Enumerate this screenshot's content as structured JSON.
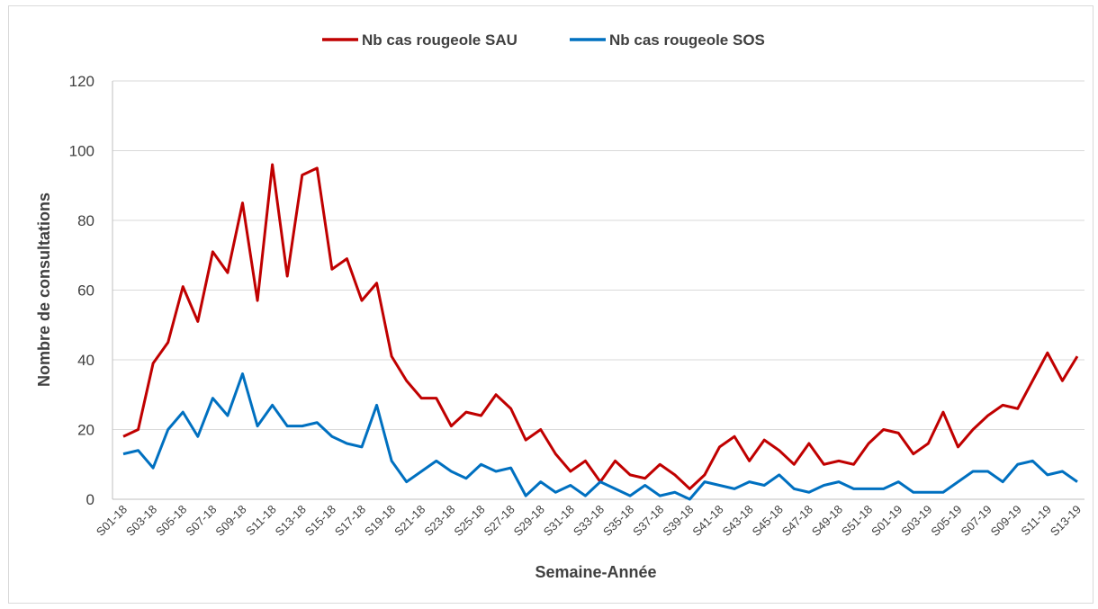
{
  "chart_data": {
    "type": "line",
    "x_label": "Semaine-Année",
    "y_label": "Nombre de consultations",
    "categories": [
      "S01-18",
      null,
      "S03-18",
      null,
      "S05-18",
      null,
      "S07-18",
      null,
      "S09-18",
      null,
      "S11-18",
      null,
      "S13-18",
      null,
      "S15-18",
      null,
      "S17-18",
      null,
      "S19-18",
      null,
      "S21-18",
      null,
      "S23-18",
      null,
      "S25-18",
      null,
      "S27-18",
      null,
      "S29-18",
      null,
      "S31-18",
      null,
      "S33-18",
      null,
      "S35-18",
      null,
      "S37-18",
      null,
      "S39-18",
      null,
      "S41-18",
      null,
      "S43-18",
      null,
      "S45-18",
      null,
      "S47-18",
      null,
      "S49-18",
      null,
      "S51-18",
      null,
      "S01-19",
      null,
      "S03-19",
      null,
      "S05-19",
      null,
      "S07-19",
      null,
      "S09-19",
      null,
      "S11-19",
      null,
      "S13-19"
    ],
    "series": [
      {
        "name": "Nb cas rougeole SAU",
        "color": "#c00000",
        "values": [
          18,
          20,
          39,
          45,
          61,
          51,
          71,
          65,
          85,
          57,
          96,
          64,
          93,
          95,
          66,
          69,
          57,
          62,
          41,
          34,
          29,
          29,
          21,
          25,
          24,
          30,
          26,
          17,
          20,
          13,
          8,
          11,
          5,
          11,
          7,
          6,
          10,
          7,
          3,
          7,
          15,
          18,
          11,
          17,
          14,
          10,
          16,
          10,
          11,
          10,
          16,
          20,
          19,
          13,
          16,
          25,
          15,
          20,
          24,
          27,
          26,
          34,
          42,
          34,
          41
        ]
      },
      {
        "name": "Nb cas rougeole SOS",
        "color": "#0070c0",
        "values": [
          13,
          14,
          9,
          20,
          25,
          18,
          29,
          24,
          36,
          21,
          27,
          21,
          21,
          22,
          18,
          16,
          15,
          27,
          11,
          5,
          8,
          11,
          8,
          6,
          10,
          8,
          9,
          1,
          5,
          2,
          4,
          1,
          5,
          3,
          1,
          4,
          1,
          2,
          0,
          5,
          4,
          3,
          5,
          4,
          7,
          3,
          2,
          4,
          5,
          3,
          3,
          3,
          5,
          2,
          2,
          2,
          5,
          8,
          8,
          5,
          10,
          11,
          7,
          8,
          5
        ]
      }
    ],
    "ylim": [
      0,
      120
    ],
    "yticks": [
      0,
      20,
      40,
      60,
      80,
      100,
      120
    ],
    "grid": true,
    "legend": "top"
  }
}
